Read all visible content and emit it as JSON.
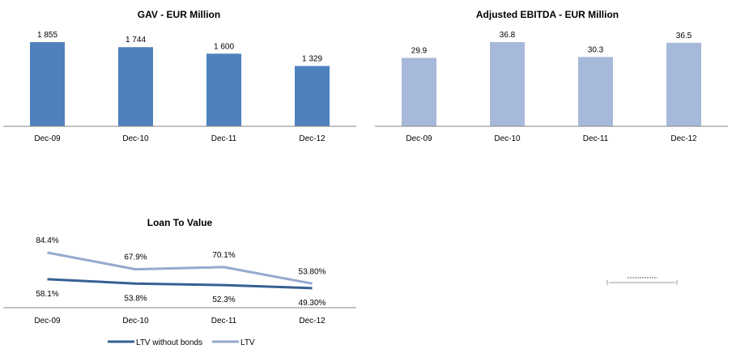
{
  "chart_data": [
    {
      "type": "bar",
      "title": "GAV - EUR Million",
      "categories": [
        "Dec-09",
        "Dec-10",
        "Dec-11",
        "Dec-12"
      ],
      "values": [
        1855,
        1744,
        1600,
        1329
      ],
      "value_labels": [
        "1 855",
        "1 744",
        "1 600",
        "1 329"
      ],
      "ylim": [
        0,
        1855
      ],
      "grid": false,
      "color": "#4f81bd"
    },
    {
      "type": "bar",
      "title": "Adjusted EBITDA - EUR Million",
      "categories": [
        "Dec-09",
        "Dec-10",
        "Dec-11",
        "Dec-12"
      ],
      "values": [
        29.9,
        36.8,
        30.3,
        36.5
      ],
      "value_labels": [
        "29.9",
        "36.8",
        "30.3",
        "36.5"
      ],
      "ylim": [
        0,
        36.8
      ],
      "grid": false,
      "color": "#a7b9da"
    },
    {
      "type": "line",
      "title": "Loan To Value",
      "categories": [
        "Dec-09",
        "Dec-10",
        "Dec-11",
        "Dec-12"
      ],
      "series": [
        {
          "name": "LTV without bonds",
          "values": [
            58.1,
            53.8,
            52.3,
            49.3
          ],
          "value_labels": [
            "58.1%",
            "53.8%",
            "52.3%",
            "49.30%"
          ],
          "color": "#376092"
        },
        {
          "name": "LTV",
          "values": [
            84.4,
            67.9,
            70.1,
            53.8
          ],
          "value_labels": [
            "84.4%",
            "67.9%",
            "70.1%",
            "53.80%"
          ],
          "color": "#95a9cf"
        }
      ],
      "ylim": [
        30,
        110
      ],
      "grid": false,
      "legend": "bottom"
    }
  ]
}
